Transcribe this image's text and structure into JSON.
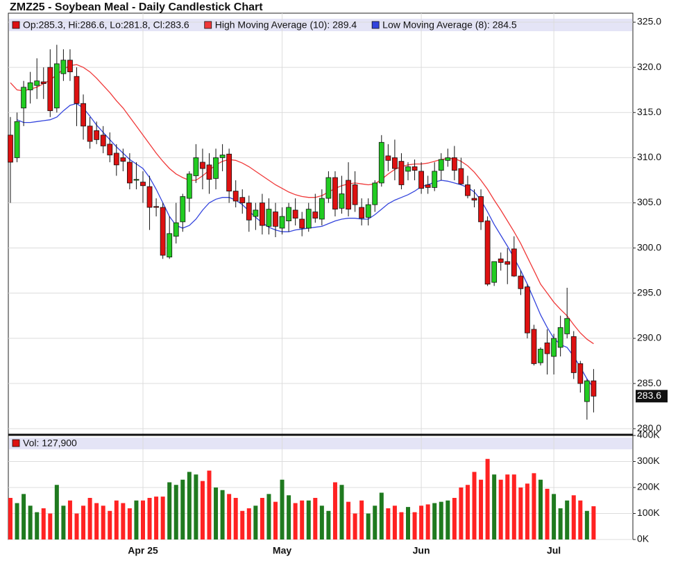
{
  "chart_data": [
    {
      "type": "candlestick",
      "title": "ZMZ25 - Soybean Meal - Daily Candlestick Chart",
      "ohlc_label": "Op:285.3, Hi:286.6, Lo:281.8, Cl:283.6",
      "up_color": "#22cc22",
      "down_color": "#dd1111",
      "open": [
        312.5,
        310,
        315.5,
        317.5,
        318,
        318.4,
        320,
        315.5,
        319.3,
        320.8,
        319,
        316,
        313.5,
        313,
        312.5,
        311.5,
        310.5,
        310,
        309.5,
        307.5,
        307.3,
        306.8,
        304.6,
        304.5,
        299,
        301.3,
        302.9,
        305.5,
        308,
        309.5,
        309.2,
        307.7,
        310,
        310.4,
        306.3,
        305.6,
        305,
        303.5,
        305,
        302.4,
        304,
        302.2,
        303,
        304.2,
        303.2,
        302.2,
        304,
        303.2,
        305.5,
        307.8,
        304.4,
        307.5,
        307,
        304.5,
        303.4,
        304.8,
        307.2,
        310.2,
        310,
        309.6,
        308.5,
        309,
        308.5,
        307,
        306.7,
        308.6,
        309.7,
        310,
        308.8,
        307,
        305.5,
        305.7,
        303,
        296.2,
        298.8,
        298.5,
        299.9,
        296.9,
        295.7,
        291,
        287.3,
        289.5,
        288,
        289,
        290.5,
        290.2,
        287.2,
        283,
        285.3
      ],
      "high": [
        314.5,
        315,
        318.5,
        319.5,
        321,
        320,
        322,
        322.5,
        322,
        322,
        320,
        317,
        314.5,
        314,
        313.5,
        312.8,
        311.5,
        311,
        310.5,
        309.5,
        308.5,
        308,
        305.5,
        305,
        303.5,
        305,
        306,
        308.5,
        311.5,
        311,
        310.5,
        311,
        311.5,
        311,
        307.5,
        306.5,
        305.8,
        305,
        306,
        305.5,
        305,
        304.5,
        305,
        305.5,
        304,
        305,
        306,
        306.5,
        308.5,
        308.5,
        308,
        309.5,
        308.5,
        305.5,
        305.5,
        307.5,
        312.5,
        311.5,
        312,
        310.5,
        309.5,
        309.8,
        309.5,
        308,
        309.5,
        310.5,
        311,
        311.3,
        310,
        308,
        306.5,
        306.5,
        303.5,
        298.5,
        299.5,
        300,
        301.3,
        297.5,
        296,
        291.5,
        289,
        291,
        290.5,
        292.5,
        295.6,
        290.8,
        287.5,
        285.5,
        286.6
      ],
      "low": [
        305,
        309.5,
        313.5,
        316,
        316.5,
        316.5,
        314.5,
        315,
        318.5,
        318.5,
        313.5,
        312,
        311,
        311.5,
        310.5,
        309.5,
        308,
        308.5,
        306.5,
        306.5,
        305,
        302,
        303.5,
        298.8,
        298.8,
        300.5,
        301.8,
        304,
        307.2,
        306.5,
        306,
        306.5,
        308.5,
        305,
        304.5,
        303.8,
        301.8,
        302,
        301.5,
        301.5,
        301.2,
        301.5,
        301.8,
        302.5,
        301.3,
        301.8,
        302.8,
        302.5,
        305,
        303.5,
        303.8,
        303.5,
        304,
        302.5,
        302.5,
        304,
        306.8,
        308.5,
        307.5,
        306.5,
        307.5,
        307.5,
        306,
        306,
        306.3,
        307.5,
        309,
        307.5,
        307,
        305.5,
        304.5,
        302,
        295.8,
        295.8,
        297.5,
        296,
        296.8,
        294.8,
        290,
        287,
        287,
        286,
        286,
        288,
        290,
        285.5,
        284,
        281,
        281.8
      ],
      "close": [
        309.5,
        314,
        317.8,
        318.3,
        318.5,
        318.2,
        315.2,
        320.4,
        320.8,
        319.5,
        316,
        313.5,
        311.8,
        312,
        311.3,
        310.3,
        309.2,
        309.6,
        307.2,
        307.6,
        306.9,
        304.5,
        304.5,
        299.2,
        301.6,
        302.8,
        305.7,
        308.2,
        310,
        308.8,
        307.6,
        310,
        310.3,
        306.3,
        305.2,
        305,
        303.1,
        304.2,
        302.5,
        304.3,
        302.4,
        303.5,
        304.5,
        303.3,
        302.2,
        304.3,
        303.3,
        305.5,
        307.8,
        304.3,
        306,
        304.3,
        304.8,
        303.3,
        304.8,
        307.2,
        311.7,
        309.7,
        308.8,
        307,
        309,
        308.6,
        306.6,
        306.7,
        308.5,
        309.8,
        310,
        308.6,
        307.1,
        305.8,
        305.3,
        302.9,
        296,
        298.5,
        298.4,
        298.2,
        296.9,
        295.5,
        290.6,
        287.2,
        288.8,
        288.3,
        290,
        291.2,
        292.2,
        286.2,
        285,
        285.3,
        283.6
      ],
      "series": [
        {
          "name": "High Moving Average (10): 289.4",
          "color": "#f03838",
          "values": [
            318.3,
            317.5,
            317.4,
            317.6,
            317.8,
            318.2,
            318.6,
            319.2,
            319.8,
            320.2,
            320.3,
            320,
            319.5,
            318.8,
            318,
            317.2,
            316.3,
            315.5,
            314.5,
            313.5,
            312.5,
            311.5,
            310.5,
            309.6,
            308.8,
            308.2,
            307.8,
            307.5,
            307.5,
            308,
            308.6,
            309.2,
            309.6,
            309.8,
            309.7,
            309.4,
            309,
            308.5,
            308,
            307.5,
            307,
            306.6,
            306.2,
            305.9,
            305.7,
            305.6,
            305.6,
            305.8,
            306.2,
            306.6,
            306.9,
            307.1,
            307.2,
            307.1,
            307,
            307.1,
            307.6,
            308.2,
            308.7,
            309,
            309.2,
            309.3,
            309.3,
            309.4,
            309.6,
            309.8,
            309.9,
            309.9,
            309.6,
            309.1,
            308.4,
            307.5,
            306.5,
            305.3,
            304.2,
            303,
            301.8,
            300.5,
            299,
            297.5,
            296,
            295,
            294,
            293.2,
            292.5,
            291.5,
            290.6,
            289.9,
            289.4
          ]
        },
        {
          "name": "Low Moving Average (8): 284.5",
          "color": "#3344dd",
          "values": [
            null,
            314.2,
            313.9,
            313.9,
            314,
            314.1,
            314.2,
            314.5,
            315.2,
            315.8,
            316,
            315.5,
            314.6,
            313.6,
            312.8,
            312,
            311.2,
            310.5,
            309.8,
            309.3,
            308.8,
            307.8,
            306.5,
            305,
            303.5,
            302.5,
            302.2,
            302.5,
            303.2,
            304.2,
            305,
            305.4,
            305.6,
            305.6,
            305.3,
            304.8,
            304.1,
            303.4,
            302.8,
            302.3,
            302,
            301.8,
            301.8,
            302,
            302.1,
            302.2,
            302.3,
            302.4,
            302.7,
            303,
            303.2,
            303.3,
            303.3,
            303.2,
            303.2,
            303.7,
            304.3,
            304.9,
            305.3,
            305.6,
            305.9,
            306.3,
            306.8,
            307,
            307.3,
            307.5,
            307.4,
            307.2,
            307,
            306.7,
            306.2,
            305.3,
            304,
            302.6,
            301.4,
            300.2,
            298.9,
            297.5,
            296,
            294.3,
            292.6,
            291.2,
            290,
            289.3,
            289,
            288,
            286.8,
            285.5,
            284.5
          ]
        }
      ],
      "ylim": [
        279.4,
        326.0
      ],
      "yticks": [
        {
          "value": 280,
          "label": "280.0"
        },
        {
          "value": 285,
          "label": "285.0"
        },
        {
          "value": 290,
          "label": "290.0"
        },
        {
          "value": 295,
          "label": "295.0"
        },
        {
          "value": 300,
          "label": "300.0"
        },
        {
          "value": 305,
          "label": "305.0"
        },
        {
          "value": 310,
          "label": "310.0"
        },
        {
          "value": 315,
          "label": "315.0"
        },
        {
          "value": 320,
          "label": "320.0"
        },
        {
          "value": 325,
          "label": "325.0"
        }
      ],
      "grid": true
    },
    {
      "type": "bar",
      "categories": [
        null,
        null,
        null,
        null,
        null,
        null,
        null,
        null,
        null,
        null,
        null,
        null,
        null,
        null,
        null,
        null,
        null,
        null,
        null,
        null,
        "Apr 25",
        null,
        null,
        null,
        null,
        null,
        null,
        null,
        null,
        null,
        null,
        null,
        null,
        null,
        null,
        null,
        null,
        null,
        null,
        null,
        null,
        "May",
        null,
        null,
        null,
        null,
        null,
        null,
        null,
        null,
        null,
        null,
        null,
        null,
        null,
        null,
        null,
        null,
        null,
        null,
        null,
        null,
        "Jun",
        null,
        null,
        null,
        null,
        null,
        null,
        null,
        null,
        null,
        null,
        null,
        null,
        null,
        null,
        null,
        null,
        null,
        null,
        null,
        "Jul",
        null,
        null,
        null,
        null,
        null,
        null
      ],
      "series": [
        {
          "name": "Vol: 127,900",
          "color": "#dd1111",
          "values": [
            160000,
            140000,
            175000,
            130000,
            105000,
            120000,
            100000,
            210000,
            130000,
            150000,
            100000,
            130000,
            160000,
            140000,
            130000,
            110000,
            150000,
            140000,
            120000,
            150000,
            150000,
            160000,
            165000,
            165000,
            220000,
            210000,
            230000,
            260000,
            250000,
            225000,
            265000,
            200000,
            190000,
            175000,
            160000,
            110000,
            120000,
            130000,
            160000,
            175000,
            145000,
            230000,
            170000,
            140000,
            150000,
            150000,
            160000,
            130000,
            110000,
            220000,
            210000,
            145000,
            100000,
            150000,
            100000,
            130000,
            180000,
            120000,
            130000,
            105000,
            125000,
            105000,
            130000,
            135000,
            140000,
            145000,
            150000,
            160000,
            200000,
            210000,
            260000,
            230000,
            310000,
            250000,
            230000,
            250000,
            250000,
            200000,
            215000,
            255000,
            230000,
            195000,
            175000,
            120000,
            150000,
            170000,
            150000,
            110000,
            127900
          ]
        }
      ],
      "ylim": [
        0,
        400000
      ],
      "yticks": [
        {
          "value": 0,
          "label": "0K"
        },
        {
          "value": 100000,
          "label": "100K"
        },
        {
          "value": 200000,
          "label": "200K"
        },
        {
          "value": 300000,
          "label": "300K"
        },
        {
          "value": 400000,
          "label": "400K"
        }
      ],
      "grid": true
    }
  ]
}
